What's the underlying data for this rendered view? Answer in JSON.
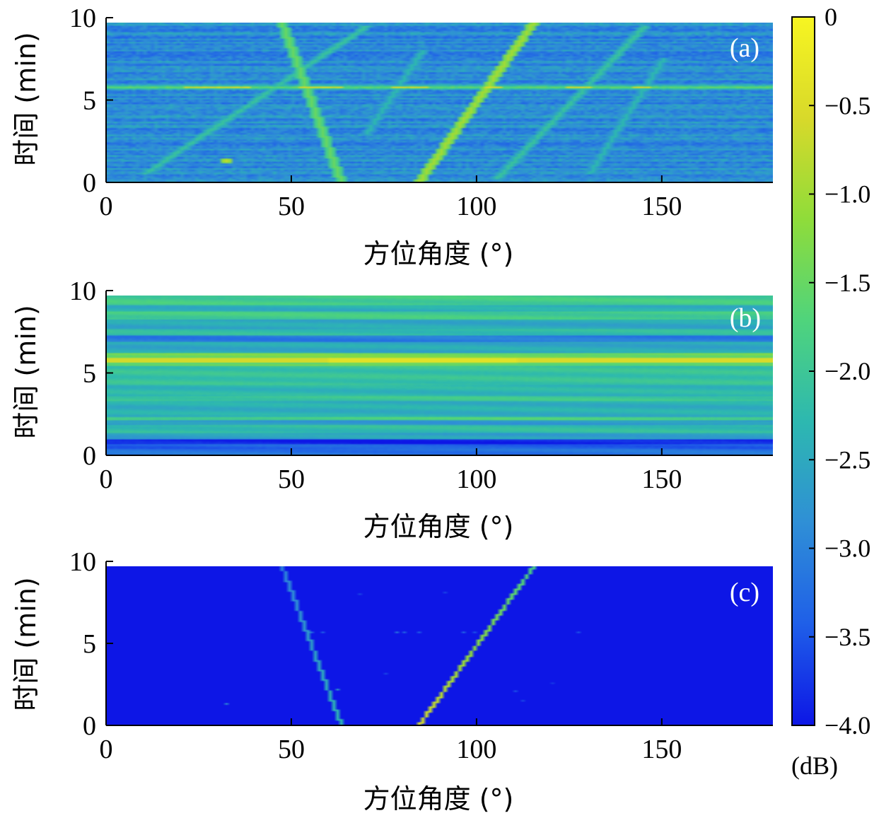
{
  "chart_data": [
    {
      "type": "heatmap",
      "panel_label": "(a)",
      "xlabel": "方位角度 (°)",
      "ylabel": "时间 (min)",
      "xlim": [
        0,
        180
      ],
      "ylim": [
        0,
        10
      ],
      "xticks": [
        0,
        50,
        100,
        150
      ],
      "yticks": [
        0,
        5,
        10
      ],
      "time_range_min": [
        0,
        9.7
      ],
      "background_db": -2.9,
      "horizontal_bands": [
        {
          "time": 5.75,
          "db": -1.6,
          "hot_spans": [
            [
              21,
              38
            ],
            [
              52,
              63
            ],
            [
              77,
              86
            ],
            [
              102,
              106
            ],
            [
              124,
              130
            ],
            [
              142,
              146
            ]
          ],
          "hot_db": -0.6
        },
        {
          "time": 0.8,
          "db": -3.7
        },
        {
          "time": 0.3,
          "db": -3.6
        },
        {
          "time": 1.5,
          "db": -3.4
        },
        {
          "time": 2.4,
          "db": -3.3
        },
        {
          "time": 7.2,
          "db": -3.0
        },
        {
          "time": 8.4,
          "db": -3.3
        }
      ],
      "tracks": [
        {
          "from": [
            63,
            0
          ],
          "to": [
            47,
            9.7
          ],
          "db": -1.5
        },
        {
          "from": [
            84,
            0
          ],
          "to": [
            115,
            9.7
          ],
          "db": -1.0
        },
        {
          "from": [
            10,
            0.5
          ],
          "to": [
            70,
            9.5
          ],
          "db": -2.1
        },
        {
          "from": [
            105,
            0.2
          ],
          "to": [
            145,
            9.5
          ],
          "db": -2.1
        },
        {
          "from": [
            70,
            3.0
          ],
          "to": [
            85,
            8.0
          ],
          "db": -2.3
        },
        {
          "from": [
            130,
            0.5
          ],
          "to": [
            150,
            7.5
          ],
          "db": -2.3
        }
      ],
      "hot_spots": [
        {
          "x": 32,
          "time": 1.3,
          "db": -0.7
        }
      ]
    },
    {
      "type": "heatmap",
      "panel_label": "(b)",
      "xlabel": "方位角度 (°)",
      "ylabel": "时间 (min)",
      "xlim": [
        0,
        180
      ],
      "ylim": [
        0,
        10
      ],
      "xticks": [
        0,
        50,
        100,
        150
      ],
      "yticks": [
        0,
        5,
        10
      ],
      "time_range_min": [
        0,
        9.7
      ],
      "rows": [
        {
          "t0": 0.0,
          "t1": 0.4,
          "db": -3.2
        },
        {
          "t0": 0.4,
          "t1": 0.7,
          "db": -3.4
        },
        {
          "t0": 0.7,
          "t1": 1.0,
          "db": -3.9
        },
        {
          "t0": 1.0,
          "t1": 1.4,
          "db": -2.6
        },
        {
          "t0": 1.4,
          "t1": 1.8,
          "db": -2.2
        },
        {
          "t0": 1.8,
          "t1": 2.1,
          "db": -2.7
        },
        {
          "t0": 2.1,
          "t1": 2.3,
          "db": -1.8
        },
        {
          "t0": 2.3,
          "t1": 3.3,
          "db": -2.4
        },
        {
          "t0": 3.3,
          "t1": 3.6,
          "db": -2.0
        },
        {
          "t0": 3.6,
          "t1": 4.3,
          "db": -2.3
        },
        {
          "t0": 4.3,
          "t1": 5.4,
          "db": -2.1
        },
        {
          "t0": 5.4,
          "t1": 5.6,
          "db": -1.5
        },
        {
          "t0": 5.6,
          "t1": 5.9,
          "db": -0.4
        },
        {
          "t0": 5.9,
          "t1": 6.2,
          "db": -1.4
        },
        {
          "t0": 6.2,
          "t1": 6.9,
          "db": -2.5
        },
        {
          "t0": 6.9,
          "t1": 7.3,
          "db": -3.1
        },
        {
          "t0": 7.3,
          "t1": 7.7,
          "db": -2.2
        },
        {
          "t0": 7.7,
          "t1": 8.2,
          "db": -2.5
        },
        {
          "t0": 8.2,
          "t1": 8.7,
          "db": -1.9
        },
        {
          "t0": 8.7,
          "t1": 9.1,
          "db": -2.4
        },
        {
          "t0": 9.1,
          "t1": 9.7,
          "db": -1.9
        }
      ]
    },
    {
      "type": "heatmap",
      "panel_label": "(c)",
      "xlabel": "方位角度 (°)",
      "ylabel": "时间 (min)",
      "xlim": [
        0,
        180
      ],
      "ylim": [
        0,
        10
      ],
      "xticks": [
        0,
        50,
        100,
        150
      ],
      "yticks": [
        0,
        5,
        10
      ],
      "time_range_min": [
        0,
        9.7
      ],
      "background_db": -4.0,
      "tracks": [
        {
          "from": [
            63,
            0
          ],
          "to": [
            47,
            9.7
          ],
          "db_start": -2.3,
          "db_end": -3.0
        },
        {
          "from": [
            84,
            0
          ],
          "to": [
            115,
            9.7
          ],
          "db_start": -0.6,
          "db_end": -1.8
        }
      ],
      "sparse_points": [
        {
          "x": 32,
          "time": 1.3,
          "db": -2.8
        },
        {
          "x": 62,
          "time": 2.2,
          "db": -2.6
        },
        {
          "x": 55,
          "time": 5.7,
          "db": -3.2
        },
        {
          "x": 58,
          "time": 5.7,
          "db": -3.4
        },
        {
          "x": 78,
          "time": 5.7,
          "db": -3.1
        },
        {
          "x": 80,
          "time": 5.7,
          "db": -3.3
        },
        {
          "x": 84,
          "time": 5.7,
          "db": -3.4
        },
        {
          "x": 96,
          "time": 5.7,
          "db": -3.3
        },
        {
          "x": 99,
          "time": 5.7,
          "db": -3.5
        },
        {
          "x": 127,
          "time": 5.7,
          "db": -3.5
        },
        {
          "x": 68,
          "time": 8.0,
          "db": -3.6
        },
        {
          "x": 91,
          "time": 8.1,
          "db": -3.6
        },
        {
          "x": 110,
          "time": 2.1,
          "db": -3.5
        },
        {
          "x": 112,
          "time": 1.5,
          "db": -3.6
        },
        {
          "x": 75,
          "time": 3.2,
          "db": -3.6
        },
        {
          "x": 120,
          "time": 2.6,
          "db": -3.7
        }
      ]
    }
  ],
  "colorbar": {
    "unit_label": "(dB)",
    "range": [
      -4.0,
      0
    ],
    "tick_labels": [
      "0",
      "−0.5",
      "−1.0",
      "−1.5",
      "−2.0",
      "−2.5",
      "−3.0",
      "−3.5",
      "−4.0"
    ],
    "tick_values": [
      0,
      -0.5,
      -1.0,
      -1.5,
      -2.0,
      -2.5,
      -3.0,
      -3.5,
      -4.0
    ],
    "colormap_stops": [
      "#0d16e6",
      "#1f5fe8",
      "#2f8fd6",
      "#2db8b0",
      "#4fd47c",
      "#8fdc3a",
      "#d8d92a",
      "#f7f521"
    ]
  }
}
